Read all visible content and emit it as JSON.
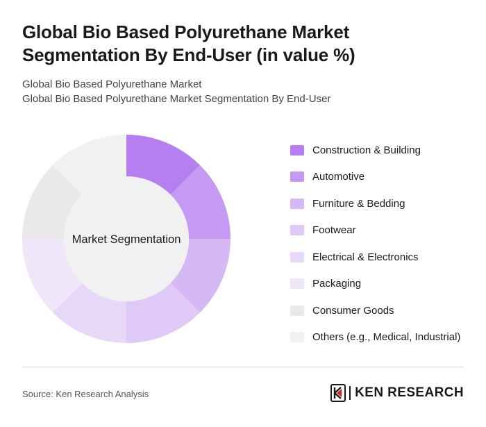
{
  "header": {
    "title": "Global Bio Based Polyurethane Market Segmentation By End-User (in value %)",
    "subtitle_1": "Global Bio Based Polyurethane Market",
    "subtitle_2": "Global Bio Based Polyurethane Market Segmentation By End-User"
  },
  "chart_data": {
    "type": "pie",
    "variant": "donut",
    "center_label": "Market Segmentation",
    "categories": [
      "Construction & Building",
      "Automotive",
      "Furniture & Bedding",
      "Footwear",
      "Electrical & Electronics",
      "Packaging",
      "Consumer Goods",
      "Others (e.g., Medical, Industrial)"
    ],
    "values": [
      12.5,
      12.5,
      12.5,
      12.5,
      12.5,
      12.5,
      12.5,
      12.5
    ],
    "colors": [
      "#b57ff0",
      "#c49af3",
      "#d6b8f5",
      "#e0c9f7",
      "#e7d8f8",
      "#efe6fa",
      "#e9e9e9",
      "#f1f1f1"
    ],
    "legend_position": "right"
  },
  "footer": {
    "source": "Source: Ken Research Analysis",
    "brand": "KEN RESEARCH",
    "brand_icon": "ken-research-logo-icon"
  }
}
